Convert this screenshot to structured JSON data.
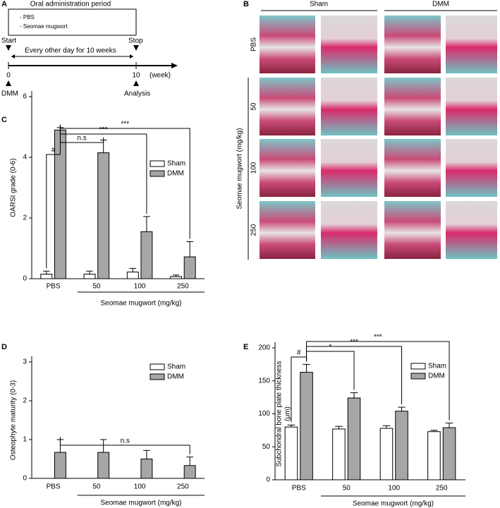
{
  "panel_a": {
    "label": "A",
    "box_title": "Oral administration period",
    "box_items": [
      "- PBS",
      "- Seomae mugwort"
    ],
    "start": "Start",
    "stop": "Stop",
    "interval": "Every other day for 10 weeks",
    "tick_start": "0",
    "tick_end": "10",
    "unit": "(week)",
    "start_event": "DMM",
    "end_event": "Analysis"
  },
  "panel_b": {
    "label": "B",
    "columns": [
      "Sham",
      "DMM"
    ],
    "rows": [
      "PBS",
      "50",
      "100",
      "250"
    ],
    "row_group": "Seomae mugwort (mg/kg)"
  },
  "chart_data": [
    {
      "panel_label": "C",
      "type": "bar",
      "y_label": [
        "OARSI grade (0-6)"
      ],
      "categories": [
        "PBS",
        "50",
        "100",
        "250"
      ],
      "group_label": "Seomae mugwort (mg/kg)",
      "series": [
        {
          "name": "Sham",
          "color": "#ffffff",
          "values": [
            0.15,
            0.15,
            0.22,
            0.07
          ],
          "errors": [
            0.1,
            0.1,
            0.12,
            0.05
          ]
        },
        {
          "name": "DMM",
          "color": "#a6a6a6",
          "values": [
            4.9,
            4.15,
            1.55,
            0.72
          ],
          "errors": [
            0.08,
            0.42,
            0.5,
            0.5
          ]
        }
      ],
      "ylim": [
        0,
        6
      ],
      "yticks": [
        0,
        2,
        4,
        6
      ],
      "annotations": [
        "#",
        "n.s",
        "***",
        "***"
      ],
      "legend": "upper right"
    },
    {
      "panel_label": "D",
      "type": "bar",
      "y_label": [
        "Osteophyte maturity (0-3)"
      ],
      "categories": [
        "PBS",
        "50",
        "100",
        "250"
      ],
      "group_label": "Seomae mugwort (mg/kg)",
      "series": [
        {
          "name": "Sham",
          "color": "#ffffff",
          "values": [
            0,
            0,
            0,
            0
          ],
          "errors": [
            0,
            0,
            0,
            0
          ]
        },
        {
          "name": "DMM",
          "color": "#a6a6a6",
          "values": [
            0.67,
            0.67,
            0.5,
            0.33
          ],
          "errors": [
            0.33,
            0.33,
            0.22,
            0.22
          ]
        }
      ],
      "ylim": [
        0,
        3
      ],
      "yticks": [
        0,
        1,
        2,
        3
      ],
      "annotations": [
        "n.s"
      ],
      "legend": "upper right"
    },
    {
      "panel_label": "E",
      "type": "bar",
      "y_label": [
        "Subchondral bone plate thickness",
        "(μm)"
      ],
      "categories": [
        "PBS",
        "50",
        "100",
        "250"
      ],
      "group_label": "Seomae mugwort (mg/kg)",
      "series": [
        {
          "name": "Sham",
          "color": "#ffffff",
          "values": [
            80,
            77,
            78,
            73
          ],
          "errors": [
            3,
            4,
            4,
            2
          ]
        },
        {
          "name": "DMM",
          "color": "#a6a6a6",
          "values": [
            163,
            124,
            104,
            79
          ],
          "errors": [
            12,
            8,
            6,
            7
          ]
        }
      ],
      "ylim": [
        0,
        200
      ],
      "yticks": [
        0,
        50,
        100,
        150,
        200
      ],
      "annotations": [
        "#",
        "*",
        "***",
        "***"
      ],
      "legend": "upper right"
    }
  ]
}
